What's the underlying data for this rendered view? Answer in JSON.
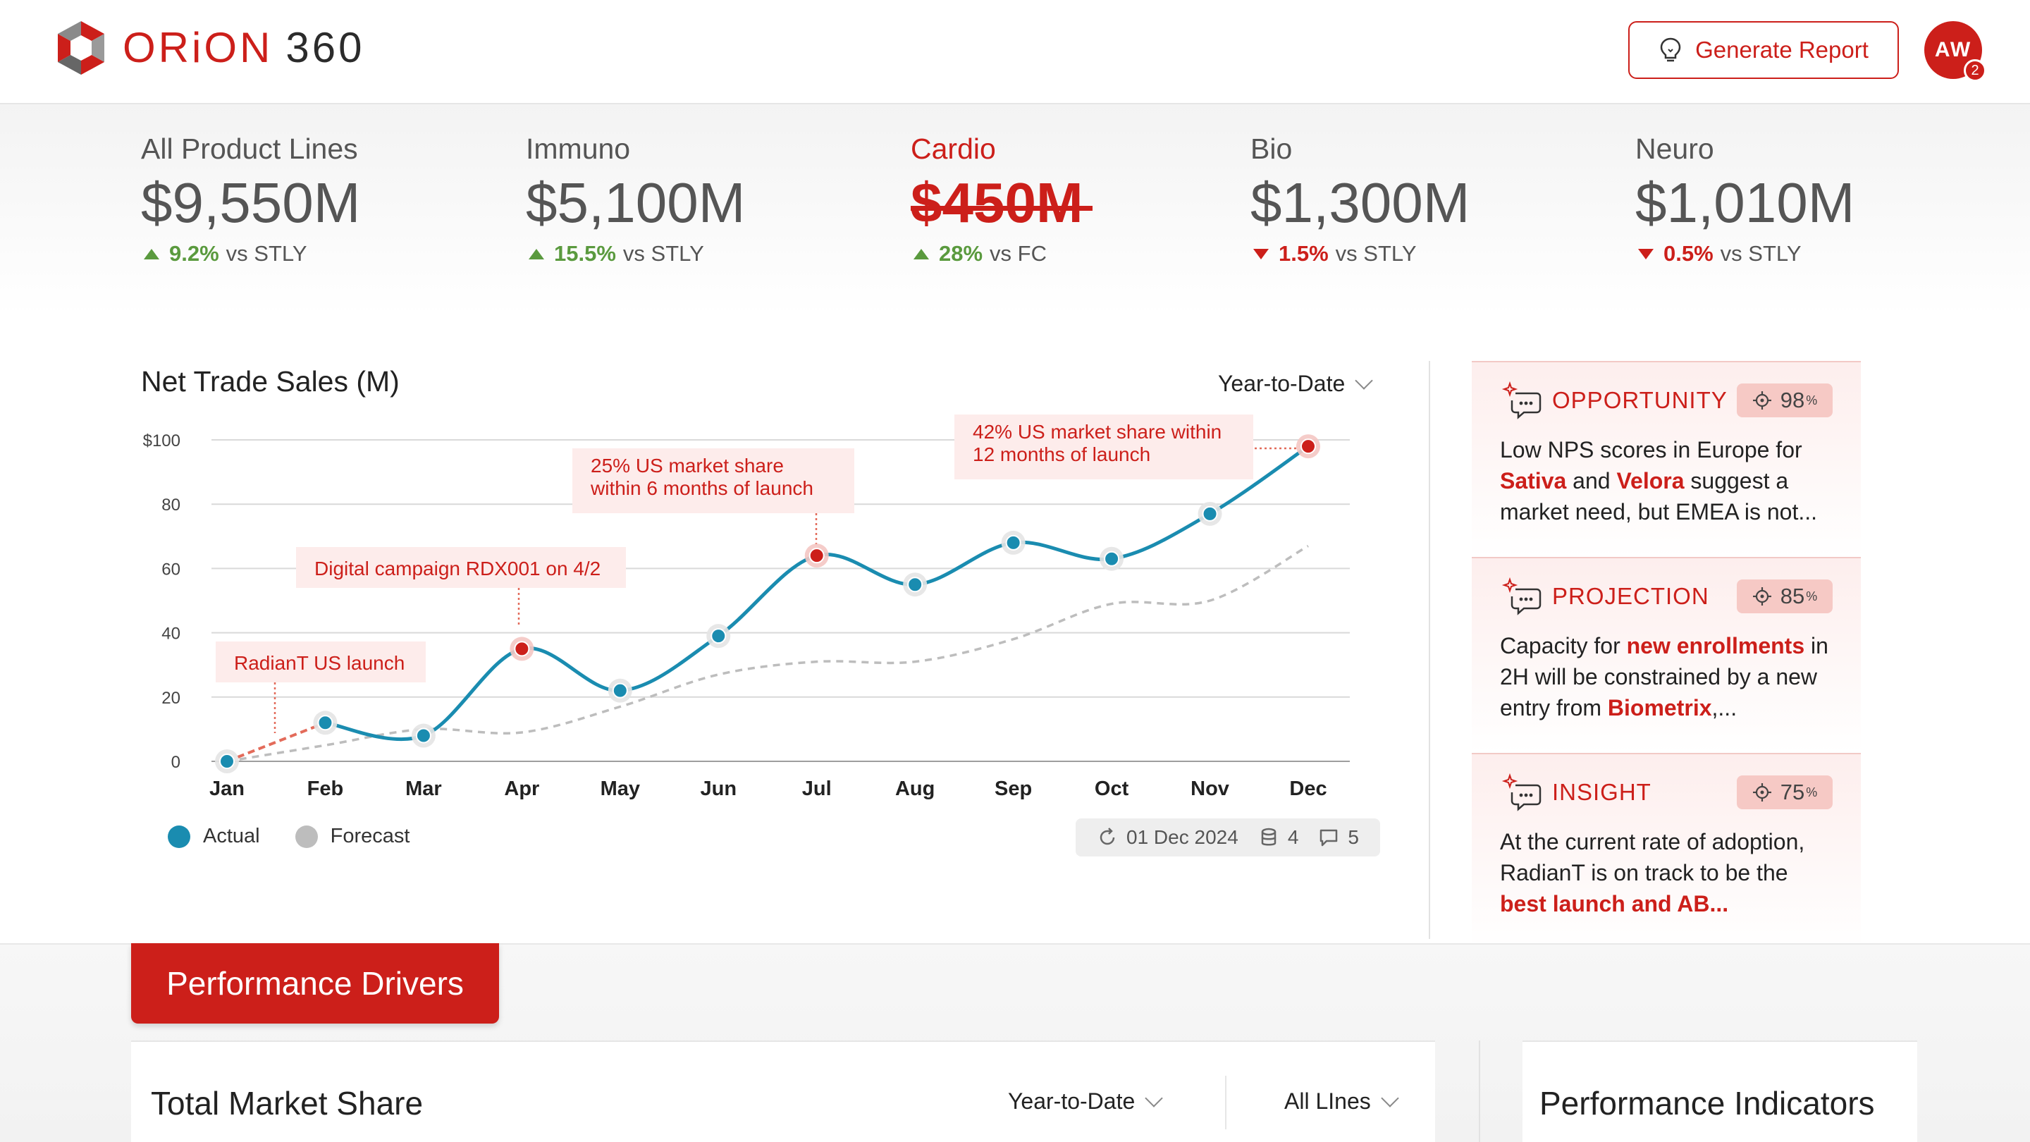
{
  "header": {
    "brand": "ORiON",
    "brand_suffix": "360",
    "generate_report_label": "Generate Report",
    "avatar_initials": "AW",
    "notification_count": "2"
  },
  "kpis": [
    {
      "label": "All Product Lines",
      "value": "$9,550M",
      "delta": "9.2%",
      "direction": "up",
      "comparison": "vs STLY"
    },
    {
      "label": "Immuno",
      "value": "$5,100M",
      "delta": "15.5%",
      "direction": "up",
      "comparison": "vs STLY"
    },
    {
      "label": "Cardio",
      "value": "$450M",
      "delta": "28%",
      "direction": "up",
      "comparison": "vs FC",
      "active": true
    },
    {
      "label": "Bio",
      "value": "$1,300M",
      "delta": "1.5%",
      "direction": "down",
      "comparison": "vs STLY"
    },
    {
      "label": "Neuro",
      "value": "$1,010M",
      "delta": "0.5%",
      "direction": "down",
      "comparison": "vs STLY"
    }
  ],
  "chart_panel": {
    "title": "Net Trade Sales (M)",
    "range": "Year-to-Date",
    "legend": {
      "actual": "Actual",
      "forecast": "Forecast"
    },
    "meta": {
      "date": "01 Dec 2024",
      "sources": "4",
      "comments": "5"
    }
  },
  "chart_data": {
    "type": "line",
    "categories": [
      "Jan",
      "Feb",
      "Mar",
      "Apr",
      "May",
      "Jun",
      "Jul",
      "Aug",
      "Sep",
      "Oct",
      "Nov",
      "Dec"
    ],
    "y_ticks": [
      "$100",
      "80",
      "60",
      "40",
      "20",
      "0"
    ],
    "ylim": [
      0,
      100
    ],
    "series": [
      {
        "name": "Actual",
        "values": [
          0,
          12,
          8,
          35,
          22,
          39,
          64,
          55,
          68,
          63,
          77,
          98
        ],
        "color": "#1a8cb0"
      },
      {
        "name": "Forecast",
        "values": [
          0,
          5,
          10,
          9,
          17,
          27,
          31,
          31,
          38,
          49,
          50,
          67
        ],
        "color": "#bdbdbd"
      }
    ],
    "annotations": [
      {
        "month_index": 1,
        "text": [
          "RadianT US launch"
        ]
      },
      {
        "month_index": 3,
        "text": [
          "Digital campaign RDX001 on 4/2"
        ]
      },
      {
        "month_index": 6,
        "text": [
          "25% US market share",
          "within 6 months of launch"
        ]
      },
      {
        "month_index": 11,
        "text": [
          "42% US market share within",
          "12 months of launch"
        ]
      }
    ],
    "highlight_points": [
      3,
      6,
      11
    ],
    "colors": {
      "accent": "#cc1f1a",
      "actual": "#1a8cb0",
      "forecast": "#bdbdbd"
    }
  },
  "insights": [
    {
      "type": "OPPORTUNITY",
      "confidence": "98",
      "confidence_unit": "%",
      "body": [
        {
          "t": "Low NPS scores in Europe for "
        },
        {
          "t": "Sativa",
          "hl": true
        },
        {
          "t": " and "
        },
        {
          "t": "Velora",
          "hl": true
        },
        {
          "t": " suggest a market need, but EMEA is not..."
        }
      ]
    },
    {
      "type": "PROJECTION",
      "confidence": "85",
      "confidence_unit": "%",
      "body": [
        {
          "t": "Capacity for "
        },
        {
          "t": "new enrollments",
          "hl": true
        },
        {
          "t": " in 2H will be constrained by a new entry from "
        },
        {
          "t": "Biometrix",
          "hl": true
        },
        {
          "t": ",..."
        }
      ]
    },
    {
      "type": "INSIGHT",
      "confidence": "75",
      "confidence_unit": "%",
      "body": [
        {
          "t": "At the current rate of adoption, RadianT is on track to be the "
        },
        {
          "t": "best launch and AB...",
          "hl": true
        }
      ]
    }
  ],
  "bottom": {
    "tab_label": "Performance Drivers",
    "market_share_title": "Total Market Share",
    "market_share_range": "Year-to-Date",
    "market_share_lines": "All LInes",
    "indicators_title": "Performance Indicators"
  }
}
